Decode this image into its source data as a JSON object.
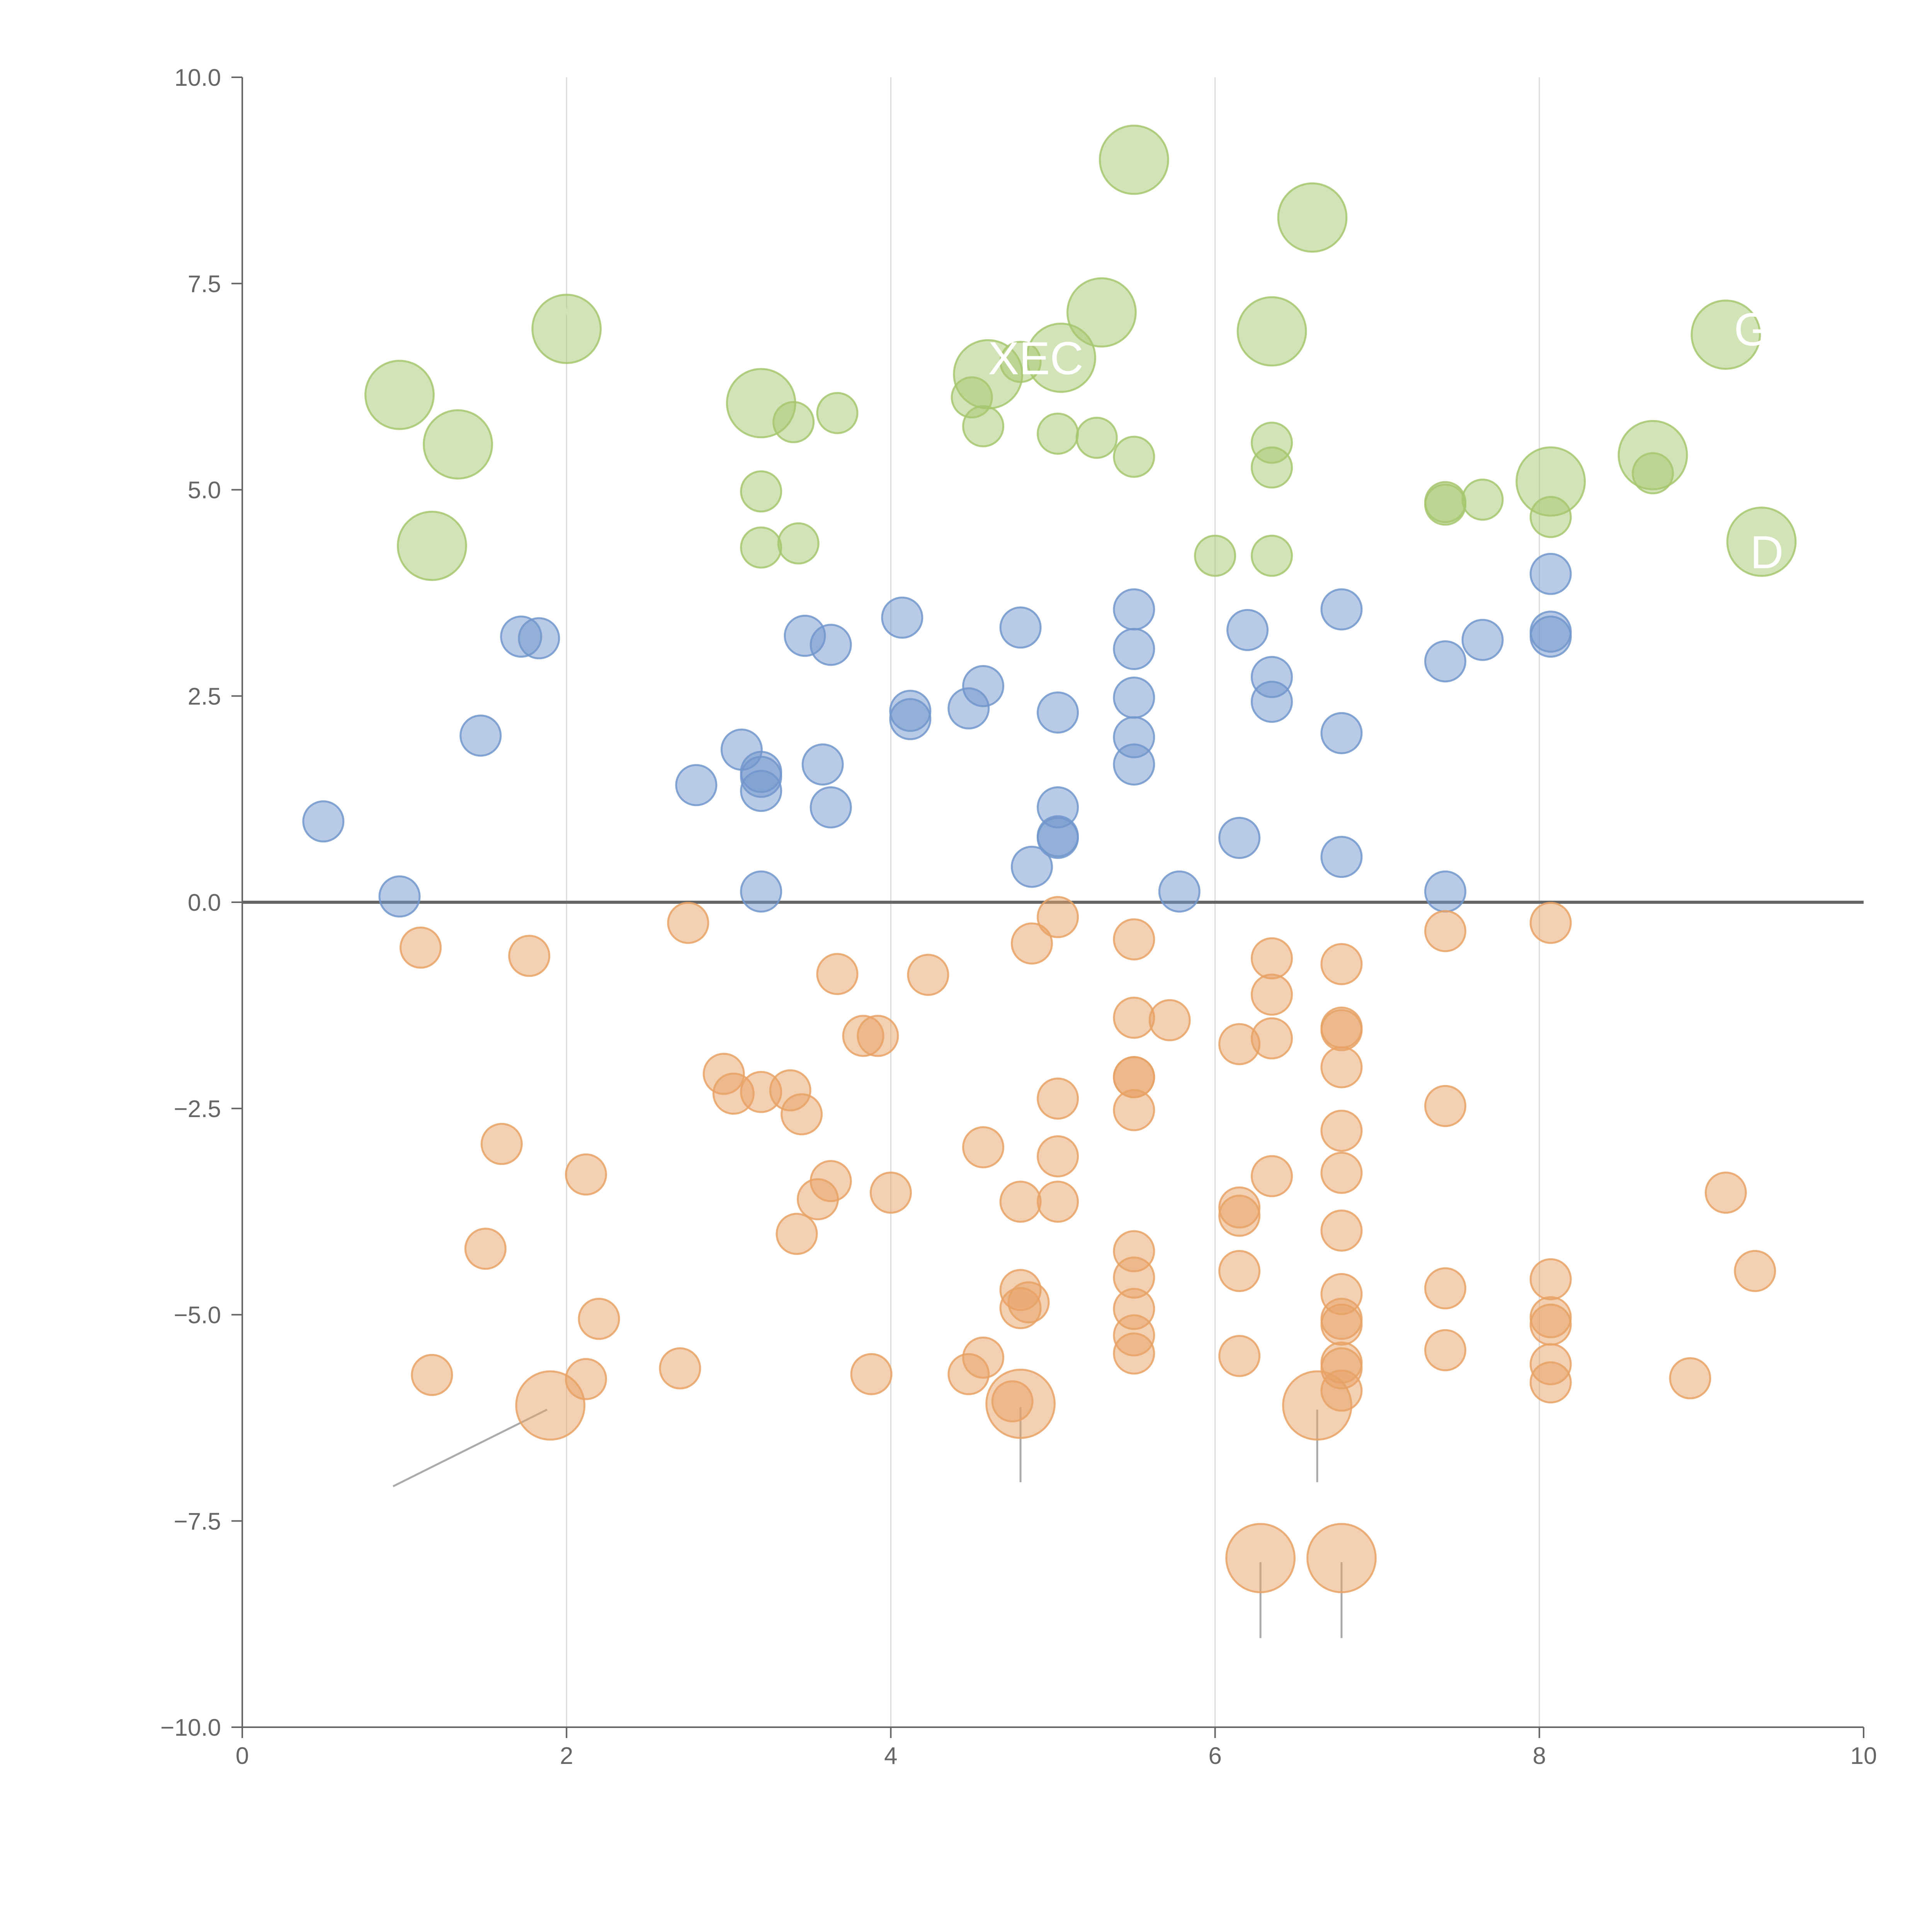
{
  "chart_data": {
    "type": "scatter",
    "title": "",
    "xlabel": "",
    "ylabel": "",
    "xlim": [
      0,
      10
    ],
    "ylim": [
      -10,
      10
    ],
    "x_ticks": [
      "0",
      "2",
      "4",
      "6",
      "8",
      "10"
    ],
    "y_ticks": [
      "10.0",
      "7.5",
      "5.0",
      "2.5",
      "0.0",
      "−2.5",
      "−5.0",
      "−7.5",
      "−10.0"
    ],
    "grid": "vertical",
    "reference_line_y": 0,
    "colors": {
      "green": "#a6c76f",
      "blue": "#7196cc",
      "orange": "#e8a265",
      "axis": "#666666",
      "grid": "#d9d9d9",
      "zero_line": "#666666",
      "leader": "#aaaaaa",
      "label": "#ffffff"
    },
    "series": [
      {
        "name": "green",
        "points": [
          [
            5.5,
            9.0,
            1.7
          ],
          [
            6.6,
            8.3,
            1.7
          ],
          [
            2.0,
            6.95,
            1.7
          ],
          [
            0.97,
            6.15,
            1.7
          ],
          [
            1.33,
            5.55,
            1.7
          ],
          [
            1.17,
            4.32,
            1.7
          ],
          [
            3.2,
            6.05,
            1.7
          ],
          [
            4.6,
            6.4,
            1.7
          ],
          [
            5.05,
            6.6,
            1.7
          ],
          [
            5.3,
            7.15,
            1.7
          ],
          [
            6.35,
            6.92,
            1.7
          ],
          [
            9.15,
            6.88,
            1.7
          ],
          [
            8.7,
            5.42,
            1.7
          ],
          [
            8.07,
            5.1,
            1.7
          ],
          [
            9.37,
            4.37,
            1.7
          ],
          [
            4.8,
            6.55,
            1.0
          ],
          [
            4.5,
            6.12,
            1.0
          ],
          [
            4.57,
            5.77,
            1.0
          ],
          [
            3.4,
            5.82,
            1.0
          ],
          [
            3.67,
            5.93,
            1.0
          ],
          [
            3.2,
            4.98,
            1.0
          ],
          [
            3.2,
            4.3,
            1.0
          ],
          [
            3.43,
            4.35,
            1.0
          ],
          [
            5.03,
            5.68,
            1.0
          ],
          [
            5.27,
            5.63,
            1.0
          ],
          [
            5.5,
            5.4,
            1.0
          ],
          [
            6.35,
            5.57,
            1.0
          ],
          [
            6.35,
            5.27,
            1.0
          ],
          [
            6.0,
            4.2,
            1.0
          ],
          [
            6.35,
            4.2,
            1.0
          ],
          [
            7.42,
            4.85,
            1.0
          ],
          [
            7.42,
            4.82,
            1.0
          ],
          [
            7.65,
            4.88,
            1.0
          ],
          [
            8.07,
            4.67,
            1.0
          ],
          [
            8.7,
            5.2,
            1.0
          ]
        ]
      },
      {
        "name": "blue",
        "points": [
          [
            0.5,
            0.98,
            1.0
          ],
          [
            0.97,
            0.07,
            1.0
          ],
          [
            1.47,
            2.02,
            1.0
          ],
          [
            1.72,
            3.22,
            1.0
          ],
          [
            1.83,
            3.2,
            1.0
          ],
          [
            2.8,
            1.42,
            1.0
          ],
          [
            3.08,
            1.85,
            1.0
          ],
          [
            3.2,
            1.58,
            1.0
          ],
          [
            3.2,
            1.52,
            1.0
          ],
          [
            3.2,
            1.35,
            1.0
          ],
          [
            3.2,
            0.13,
            1.0
          ],
          [
            3.47,
            3.23,
            1.0
          ],
          [
            3.63,
            3.12,
            1.0
          ],
          [
            3.58,
            1.67,
            1.0
          ],
          [
            3.63,
            1.15,
            1.0
          ],
          [
            4.07,
            3.45,
            1.0
          ],
          [
            4.12,
            2.22,
            1.0
          ],
          [
            4.12,
            2.32,
            1.0
          ],
          [
            4.48,
            2.35,
            1.0
          ],
          [
            4.57,
            2.62,
            1.0
          ],
          [
            4.8,
            3.33,
            1.0
          ],
          [
            5.03,
            2.3,
            1.0
          ],
          [
            5.03,
            1.15,
            1.0
          ],
          [
            5.03,
            0.8,
            1.0
          ],
          [
            5.03,
            0.78,
            1.0
          ],
          [
            4.87,
            0.43,
            1.0
          ],
          [
            5.5,
            3.55,
            1.0
          ],
          [
            5.5,
            3.07,
            1.0
          ],
          [
            5.5,
            2.48,
            1.0
          ],
          [
            5.5,
            2.0,
            1.0
          ],
          [
            5.5,
            1.67,
            1.0
          ],
          [
            5.78,
            0.13,
            1.0
          ],
          [
            6.2,
            3.3,
            1.0
          ],
          [
            6.15,
            0.78,
            1.0
          ],
          [
            6.35,
            2.73,
            1.0
          ],
          [
            6.35,
            2.43,
            1.0
          ],
          [
            6.78,
            3.55,
            1.0
          ],
          [
            6.78,
            2.05,
            1.0
          ],
          [
            6.78,
            0.55,
            1.0
          ],
          [
            7.42,
            2.92,
            1.0
          ],
          [
            7.42,
            0.13,
            1.0
          ],
          [
            7.65,
            3.18,
            1.0
          ],
          [
            8.07,
            3.98,
            1.0
          ],
          [
            8.07,
            3.28,
            1.0
          ],
          [
            8.07,
            3.22,
            1.0
          ]
        ]
      },
      {
        "name": "orange",
        "points": [
          [
            1.1,
            -0.55,
            1.0
          ],
          [
            1.77,
            -0.65,
            1.0
          ],
          [
            2.75,
            -0.25,
            1.0
          ],
          [
            1.6,
            -2.93,
            1.0
          ],
          [
            1.5,
            -4.2,
            1.0
          ],
          [
            1.17,
            -5.73,
            1.0
          ],
          [
            2.12,
            -3.3,
            1.0
          ],
          [
            2.2,
            -5.05,
            1.0
          ],
          [
            2.12,
            -5.78,
            1.0
          ],
          [
            2.7,
            -5.65,
            1.0
          ],
          [
            2.97,
            -2.08,
            1.0
          ],
          [
            3.03,
            -2.32,
            1.0
          ],
          [
            3.2,
            -2.3,
            1.0
          ],
          [
            3.38,
            -2.28,
            1.0
          ],
          [
            3.45,
            -2.57,
            1.0
          ],
          [
            3.67,
            -0.87,
            1.0
          ],
          [
            3.83,
            -1.62,
            1.0
          ],
          [
            3.92,
            -1.62,
            1.0
          ],
          [
            3.63,
            -3.38,
            1.0
          ],
          [
            3.55,
            -3.6,
            1.0
          ],
          [
            3.42,
            -4.02,
            1.0
          ],
          [
            4.0,
            -3.52,
            1.0
          ],
          [
            4.23,
            -0.88,
            1.0
          ],
          [
            3.88,
            -5.72,
            1.0
          ],
          [
            4.48,
            -5.72,
            1.0
          ],
          [
            4.57,
            -5.52,
            1.0
          ],
          [
            4.57,
            -2.97,
            1.0
          ],
          [
            4.8,
            -3.63,
            1.0
          ],
          [
            4.8,
            -4.7,
            1.0
          ],
          [
            4.8,
            -4.92,
            1.0
          ],
          [
            4.85,
            -4.85,
            1.0
          ],
          [
            4.75,
            -6.05,
            1.0
          ],
          [
            4.87,
            -0.5,
            1.0
          ],
          [
            5.03,
            -0.18,
            1.0
          ],
          [
            5.03,
            -2.38,
            1.0
          ],
          [
            5.03,
            -3.08,
            1.0
          ],
          [
            5.03,
            -3.63,
            1.0
          ],
          [
            5.5,
            -0.45,
            1.0
          ],
          [
            5.5,
            -1.4,
            1.0
          ],
          [
            5.72,
            -1.43,
            1.0
          ],
          [
            5.5,
            -2.12,
            1.0
          ],
          [
            5.5,
            -2.12,
            1.0
          ],
          [
            5.5,
            -2.52,
            1.0
          ],
          [
            5.5,
            -4.23,
            1.0
          ],
          [
            5.5,
            -4.55,
            1.0
          ],
          [
            5.5,
            -4.93,
            1.0
          ],
          [
            5.5,
            -5.25,
            1.0
          ],
          [
            5.5,
            -5.47,
            1.0
          ],
          [
            6.15,
            -1.72,
            1.0
          ],
          [
            6.15,
            -3.7,
            1.0
          ],
          [
            6.15,
            -3.8,
            1.0
          ],
          [
            6.15,
            -4.47,
            1.0
          ],
          [
            6.15,
            -5.5,
            1.0
          ],
          [
            6.35,
            -0.68,
            1.0
          ],
          [
            6.35,
            -1.12,
            1.0
          ],
          [
            6.35,
            -1.65,
            1.0
          ],
          [
            6.35,
            -3.32,
            1.0
          ],
          [
            6.78,
            -0.75,
            1.0
          ],
          [
            6.78,
            -1.52,
            1.0
          ],
          [
            6.78,
            -1.55,
            1.0
          ],
          [
            6.78,
            -2.0,
            1.0
          ],
          [
            6.78,
            -2.77,
            1.0
          ],
          [
            6.78,
            -3.28,
            1.0
          ],
          [
            6.78,
            -3.98,
            1.0
          ],
          [
            6.78,
            -4.75,
            1.0
          ],
          [
            6.78,
            -5.05,
            1.0
          ],
          [
            6.78,
            -5.12,
            1.0
          ],
          [
            6.78,
            -5.58,
            1.0
          ],
          [
            6.78,
            -5.65,
            1.0
          ],
          [
            6.78,
            -5.92,
            1.0
          ],
          [
            7.42,
            -0.35,
            1.0
          ],
          [
            7.42,
            -2.47,
            1.0
          ],
          [
            7.42,
            -4.68,
            1.0
          ],
          [
            7.42,
            -5.43,
            1.0
          ],
          [
            8.07,
            -0.25,
            1.0
          ],
          [
            8.07,
            -4.57,
            1.0
          ],
          [
            8.07,
            -5.03,
            1.0
          ],
          [
            8.07,
            -5.12,
            1.0
          ],
          [
            8.07,
            -5.6,
            1.0
          ],
          [
            8.07,
            -5.82,
            1.0
          ],
          [
            8.93,
            -5.77,
            1.0
          ],
          [
            9.15,
            -3.52,
            1.0
          ],
          [
            9.33,
            -4.47,
            1.0
          ],
          [
            1.9,
            -6.1,
            1.7
          ],
          [
            4.8,
            -6.08,
            1.7
          ],
          [
            6.63,
            -6.1,
            1.7
          ],
          [
            6.28,
            -7.95,
            1.7
          ],
          [
            6.78,
            -7.95,
            1.7
          ]
        ]
      }
    ],
    "leaders": [
      {
        "series": "orange",
        "from": [
          1.88,
          -6.15
        ],
        "to": [
          0.93,
          -7.08
        ]
      },
      {
        "series": "orange",
        "from": [
          4.8,
          -6.12
        ],
        "to": [
          4.8,
          -7.03
        ]
      },
      {
        "series": "orange",
        "from": [
          6.63,
          -6.15
        ],
        "to": [
          6.63,
          -7.03
        ]
      },
      {
        "series": "orange",
        "from": [
          6.28,
          -8.0
        ],
        "to": [
          6.28,
          -8.92
        ]
      },
      {
        "series": "orange",
        "from": [
          6.78,
          -8.0
        ],
        "to": [
          6.78,
          -8.92
        ]
      },
      {
        "series": "green",
        "from": [
          5.55,
          9.07
        ],
        "to": [
          5.72,
          9.13
        ]
      },
      {
        "series": "green",
        "from": [
          6.63,
          8.38
        ],
        "to": [
          6.8,
          8.52
        ]
      },
      {
        "series": "green",
        "from": [
          2.02,
          7.03
        ],
        "to": [
          1.97,
          7.35
        ]
      },
      {
        "series": "green",
        "from": [
          0.97,
          6.25
        ],
        "to": [
          0.87,
          6.45
        ]
      },
      {
        "series": "green",
        "from": [
          1.43,
          5.48
        ],
        "to": [
          1.33,
          5.57
        ]
      },
      {
        "series": "green",
        "from": [
          1.33,
          4.2
        ],
        "to": [
          1.2,
          4.33
        ]
      },
      {
        "series": "green",
        "from": [
          3.05,
          6.15
        ],
        "to": [
          3.2,
          6.05
        ]
      },
      {
        "series": "green",
        "from": [
          4.45,
          6.52
        ],
        "to": [
          4.6,
          6.42
        ]
      },
      {
        "series": "green",
        "from": [
          5.15,
          6.85
        ],
        "to": [
          5.05,
          6.65
        ]
      },
      {
        "series": "green",
        "from": [
          5.4,
          7.35
        ],
        "to": [
          5.3,
          7.15
        ]
      },
      {
        "series": "green",
        "from": [
          6.32,
          7.23
        ],
        "to": [
          6.38,
          6.95
        ]
      },
      {
        "series": "green",
        "from": [
          9.15,
          7.27
        ],
        "to": [
          9.15,
          6.98
        ]
      },
      {
        "series": "green",
        "from": [
          8.57,
          5.48
        ],
        "to": [
          8.7,
          5.45
        ]
      },
      {
        "series": "green",
        "from": [
          8.17,
          5.38
        ],
        "to": [
          8.1,
          5.15
        ]
      },
      {
        "series": "green",
        "from": [
          9.47,
          4.37
        ],
        "to": [
          9.37,
          4.42
        ]
      }
    ],
    "labels": [
      {
        "text": "XEC",
        "x": 4.6,
        "y": 6.4
      },
      {
        "text": "G",
        "x": 9.2,
        "y": 6.75
      },
      {
        "text": "D",
        "x": 9.3,
        "y": 4.05
      }
    ]
  }
}
